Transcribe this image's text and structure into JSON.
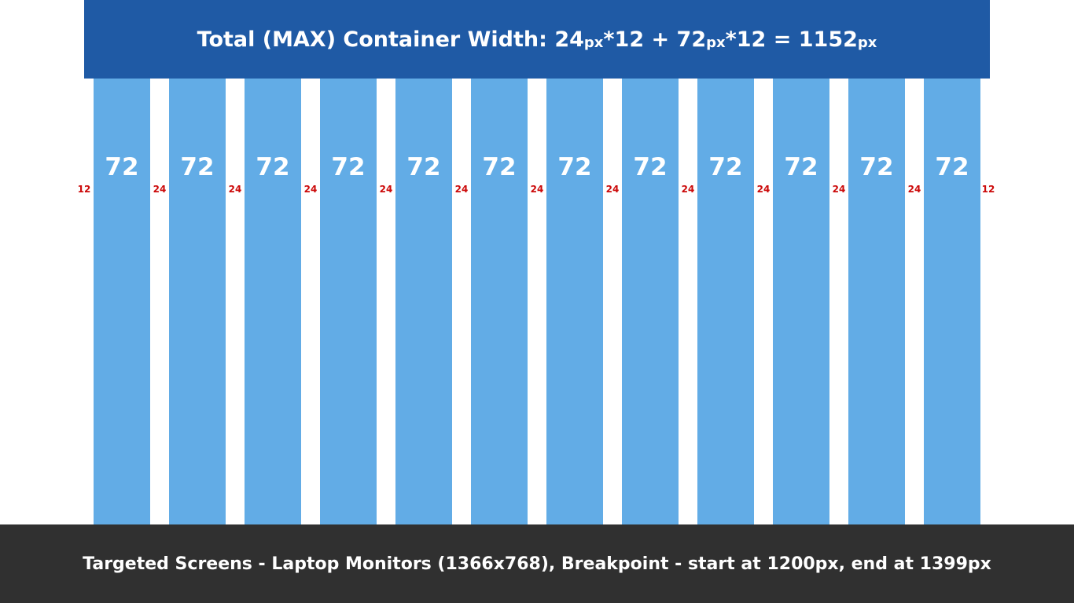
{
  "header": {
    "prefix": "Total (MAX) Container Width: 24",
    "unit_1": "px",
    "mid_1": "*12 + 72",
    "unit_2": "px",
    "mid_2": "*12 = 1152",
    "unit_3": "px"
  },
  "grid": {
    "column_label": "72",
    "gutter_label": "24",
    "edge_label": "12",
    "column_count": 12,
    "column_color": "#62ace6",
    "gutter_label_color": "#cc0a0a"
  },
  "colors": {
    "header_bg": "#1f5aa5",
    "footer_bg": "#303030"
  },
  "footer": {
    "text": "Targeted Screens - Laptop Monitors (1366x768), Breakpoint - start at 1200px, end at 1399px"
  }
}
